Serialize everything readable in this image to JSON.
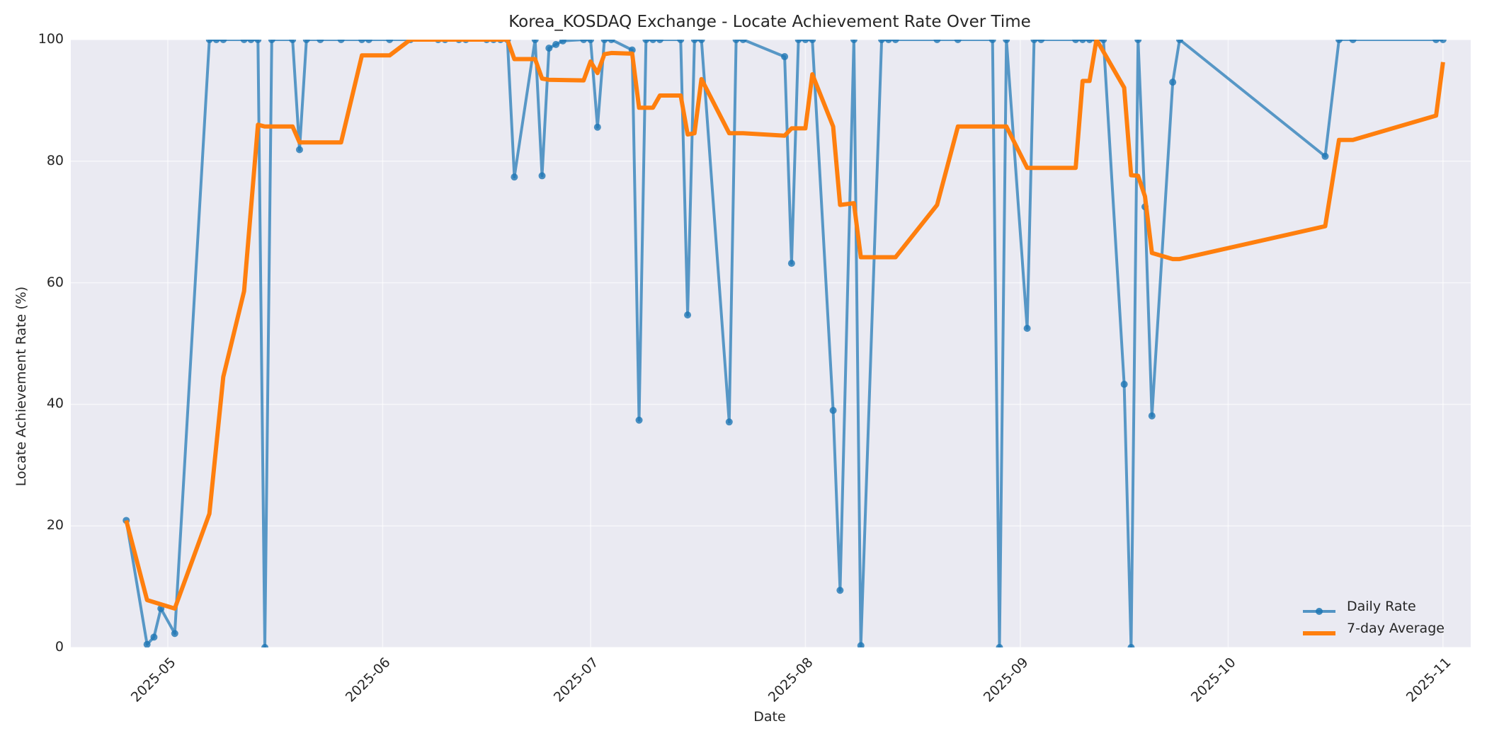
{
  "chart_data": {
    "type": "line",
    "title": "Korea_KOSDAQ Exchange - Locate Achievement Rate Over Time",
    "xlabel": "Date",
    "ylabel": "Locate Achievement Rate (%)",
    "ylim": [
      0,
      100
    ],
    "yticks": [
      "0",
      "20",
      "40",
      "60",
      "80",
      "100"
    ],
    "xticks": [
      "2025-05",
      "2025-06",
      "2025-07",
      "2025-08",
      "2025-09",
      "2025-10",
      "2025-11"
    ],
    "grid": true,
    "legend_position": "lower right",
    "series": [
      {
        "name": "Daily Rate",
        "color": "#1f77b4",
        "marker": "o",
        "points": [
          [
            "2025-04-25",
            20.9
          ],
          [
            "2025-04-28",
            0.5
          ],
          [
            "2025-04-29",
            1.7
          ],
          [
            "2025-04-30",
            6.4
          ],
          [
            "2025-05-02",
            2.3
          ],
          [
            "2025-05-07",
            100
          ],
          [
            "2025-05-08",
            100
          ],
          [
            "2025-05-09",
            100
          ],
          [
            "2025-05-12",
            100
          ],
          [
            "2025-05-13",
            100
          ],
          [
            "2025-05-14",
            100
          ],
          [
            "2025-05-15",
            0
          ],
          [
            "2025-05-16",
            100
          ],
          [
            "2025-05-19",
            100
          ],
          [
            "2025-05-20",
            81.9
          ],
          [
            "2025-05-21",
            100
          ],
          [
            "2025-05-23",
            100
          ],
          [
            "2025-05-26",
            100
          ],
          [
            "2025-05-29",
            100
          ],
          [
            "2025-05-30",
            100
          ],
          [
            "2025-06-02",
            100
          ],
          [
            "2025-06-05",
            100
          ],
          [
            "2025-06-09",
            100
          ],
          [
            "2025-06-10",
            100
          ],
          [
            "2025-06-12",
            100
          ],
          [
            "2025-06-13",
            100
          ],
          [
            "2025-06-16",
            100
          ],
          [
            "2025-06-17",
            100
          ],
          [
            "2025-06-18",
            100
          ],
          [
            "2025-06-19",
            100
          ],
          [
            "2025-06-20",
            77.4
          ],
          [
            "2025-06-23",
            100
          ],
          [
            "2025-06-24",
            77.6
          ],
          [
            "2025-06-25",
            98.6
          ],
          [
            "2025-06-26",
            99.2
          ],
          [
            "2025-06-27",
            99.8
          ],
          [
            "2025-06-30",
            100
          ],
          [
            "2025-07-01",
            100
          ],
          [
            "2025-07-02",
            85.6
          ],
          [
            "2025-07-03",
            100
          ],
          [
            "2025-07-04",
            100
          ],
          [
            "2025-07-07",
            98.3
          ],
          [
            "2025-07-08",
            37.4
          ],
          [
            "2025-07-09",
            100
          ],
          [
            "2025-07-10",
            100
          ],
          [
            "2025-07-11",
            100
          ],
          [
            "2025-07-14",
            100
          ],
          [
            "2025-07-15",
            54.7
          ],
          [
            "2025-07-16",
            100
          ],
          [
            "2025-07-17",
            100
          ],
          [
            "2025-07-21",
            37.1
          ],
          [
            "2025-07-22",
            100
          ],
          [
            "2025-07-23",
            100
          ],
          [
            "2025-07-29",
            97.2
          ],
          [
            "2025-07-30",
            63.2
          ],
          [
            "2025-07-31",
            100
          ],
          [
            "2025-08-01",
            100
          ],
          [
            "2025-08-02",
            100
          ],
          [
            "2025-08-05",
            39.0
          ],
          [
            "2025-08-06",
            9.4
          ],
          [
            "2025-08-08",
            100
          ],
          [
            "2025-08-09",
            0.3
          ],
          [
            "2025-08-12",
            100
          ],
          [
            "2025-08-13",
            100
          ],
          [
            "2025-08-14",
            100
          ],
          [
            "2025-08-20",
            100
          ],
          [
            "2025-08-23",
            100
          ],
          [
            "2025-08-28",
            100
          ],
          [
            "2025-08-29",
            0
          ],
          [
            "2025-08-30",
            100
          ],
          [
            "2025-09-02",
            52.5
          ],
          [
            "2025-09-03",
            100
          ],
          [
            "2025-09-04",
            100
          ],
          [
            "2025-09-09",
            100
          ],
          [
            "2025-09-10",
            100
          ],
          [
            "2025-09-11",
            100
          ],
          [
            "2025-09-12",
            100
          ],
          [
            "2025-09-13",
            100
          ],
          [
            "2025-09-16",
            43.3
          ],
          [
            "2025-09-17",
            0
          ],
          [
            "2025-09-18",
            100
          ],
          [
            "2025-09-19",
            72.5
          ],
          [
            "2025-09-20",
            38.1
          ],
          [
            "2025-09-23",
            93.0
          ],
          [
            "2025-09-24",
            100
          ],
          [
            "2025-10-15",
            80.8
          ],
          [
            "2025-10-17",
            100
          ],
          [
            "2025-10-19",
            100
          ],
          [
            "2025-10-31",
            100
          ],
          [
            "2025-11-01",
            100
          ]
        ]
      },
      {
        "name": "7-day Average",
        "color": "#ff7f0e",
        "points": [
          [
            "2025-04-25",
            20.9
          ],
          [
            "2025-04-28",
            7.8
          ],
          [
            "2025-04-30",
            7.1
          ],
          [
            "2025-05-02",
            6.4
          ],
          [
            "2025-05-07",
            22.0
          ],
          [
            "2025-05-09",
            44.5
          ],
          [
            "2025-05-12",
            58.6
          ],
          [
            "2025-05-14",
            86.0
          ],
          [
            "2025-05-15",
            85.7
          ],
          [
            "2025-05-19",
            85.7
          ],
          [
            "2025-05-20",
            83.1
          ],
          [
            "2025-05-26",
            83.1
          ],
          [
            "2025-05-29",
            97.4
          ],
          [
            "2025-06-02",
            97.4
          ],
          [
            "2025-06-05",
            100
          ],
          [
            "2025-06-19",
            100
          ],
          [
            "2025-06-20",
            96.8
          ],
          [
            "2025-06-23",
            96.8
          ],
          [
            "2025-06-24",
            93.6
          ],
          [
            "2025-06-25",
            93.4
          ],
          [
            "2025-06-30",
            93.3
          ],
          [
            "2025-07-01",
            96.4
          ],
          [
            "2025-07-02",
            94.5
          ],
          [
            "2025-07-03",
            97.6
          ],
          [
            "2025-07-04",
            97.8
          ],
          [
            "2025-07-07",
            97.7
          ],
          [
            "2025-07-08",
            88.8
          ],
          [
            "2025-07-10",
            88.8
          ],
          [
            "2025-07-11",
            90.8
          ],
          [
            "2025-07-14",
            90.8
          ],
          [
            "2025-07-15",
            84.4
          ],
          [
            "2025-07-16",
            84.6
          ],
          [
            "2025-07-17",
            93.5
          ],
          [
            "2025-07-21",
            84.6
          ],
          [
            "2025-07-23",
            84.6
          ],
          [
            "2025-07-29",
            84.2
          ],
          [
            "2025-07-30",
            85.4
          ],
          [
            "2025-08-01",
            85.4
          ],
          [
            "2025-08-02",
            94.3
          ],
          [
            "2025-08-05",
            85.7
          ],
          [
            "2025-08-06",
            72.8
          ],
          [
            "2025-08-08",
            73.1
          ],
          [
            "2025-08-09",
            64.2
          ],
          [
            "2025-08-14",
            64.2
          ],
          [
            "2025-08-20",
            72.8
          ],
          [
            "2025-08-23",
            85.7
          ],
          [
            "2025-08-30",
            85.7
          ],
          [
            "2025-09-02",
            78.9
          ],
          [
            "2025-09-09",
            78.9
          ],
          [
            "2025-09-10",
            93.2
          ],
          [
            "2025-09-11",
            93.2
          ],
          [
            "2025-09-12",
            100
          ],
          [
            "2025-09-16",
            92.1
          ],
          [
            "2025-09-17",
            77.7
          ],
          [
            "2025-09-18",
            77.6
          ],
          [
            "2025-09-19",
            74.2
          ],
          [
            "2025-09-20",
            64.9
          ],
          [
            "2025-09-23",
            63.9
          ],
          [
            "2025-09-24",
            63.9
          ],
          [
            "2025-10-15",
            69.3
          ],
          [
            "2025-10-17",
            83.5
          ],
          [
            "2025-10-19",
            83.5
          ],
          [
            "2025-10-31",
            87.5
          ],
          [
            "2025-11-01",
            96.3
          ]
        ]
      }
    ]
  },
  "legend": {
    "items": [
      {
        "label": "Daily Rate",
        "color": "#1f77b4"
      },
      {
        "label": "7-day Average",
        "color": "#ff7f0e"
      }
    ]
  }
}
